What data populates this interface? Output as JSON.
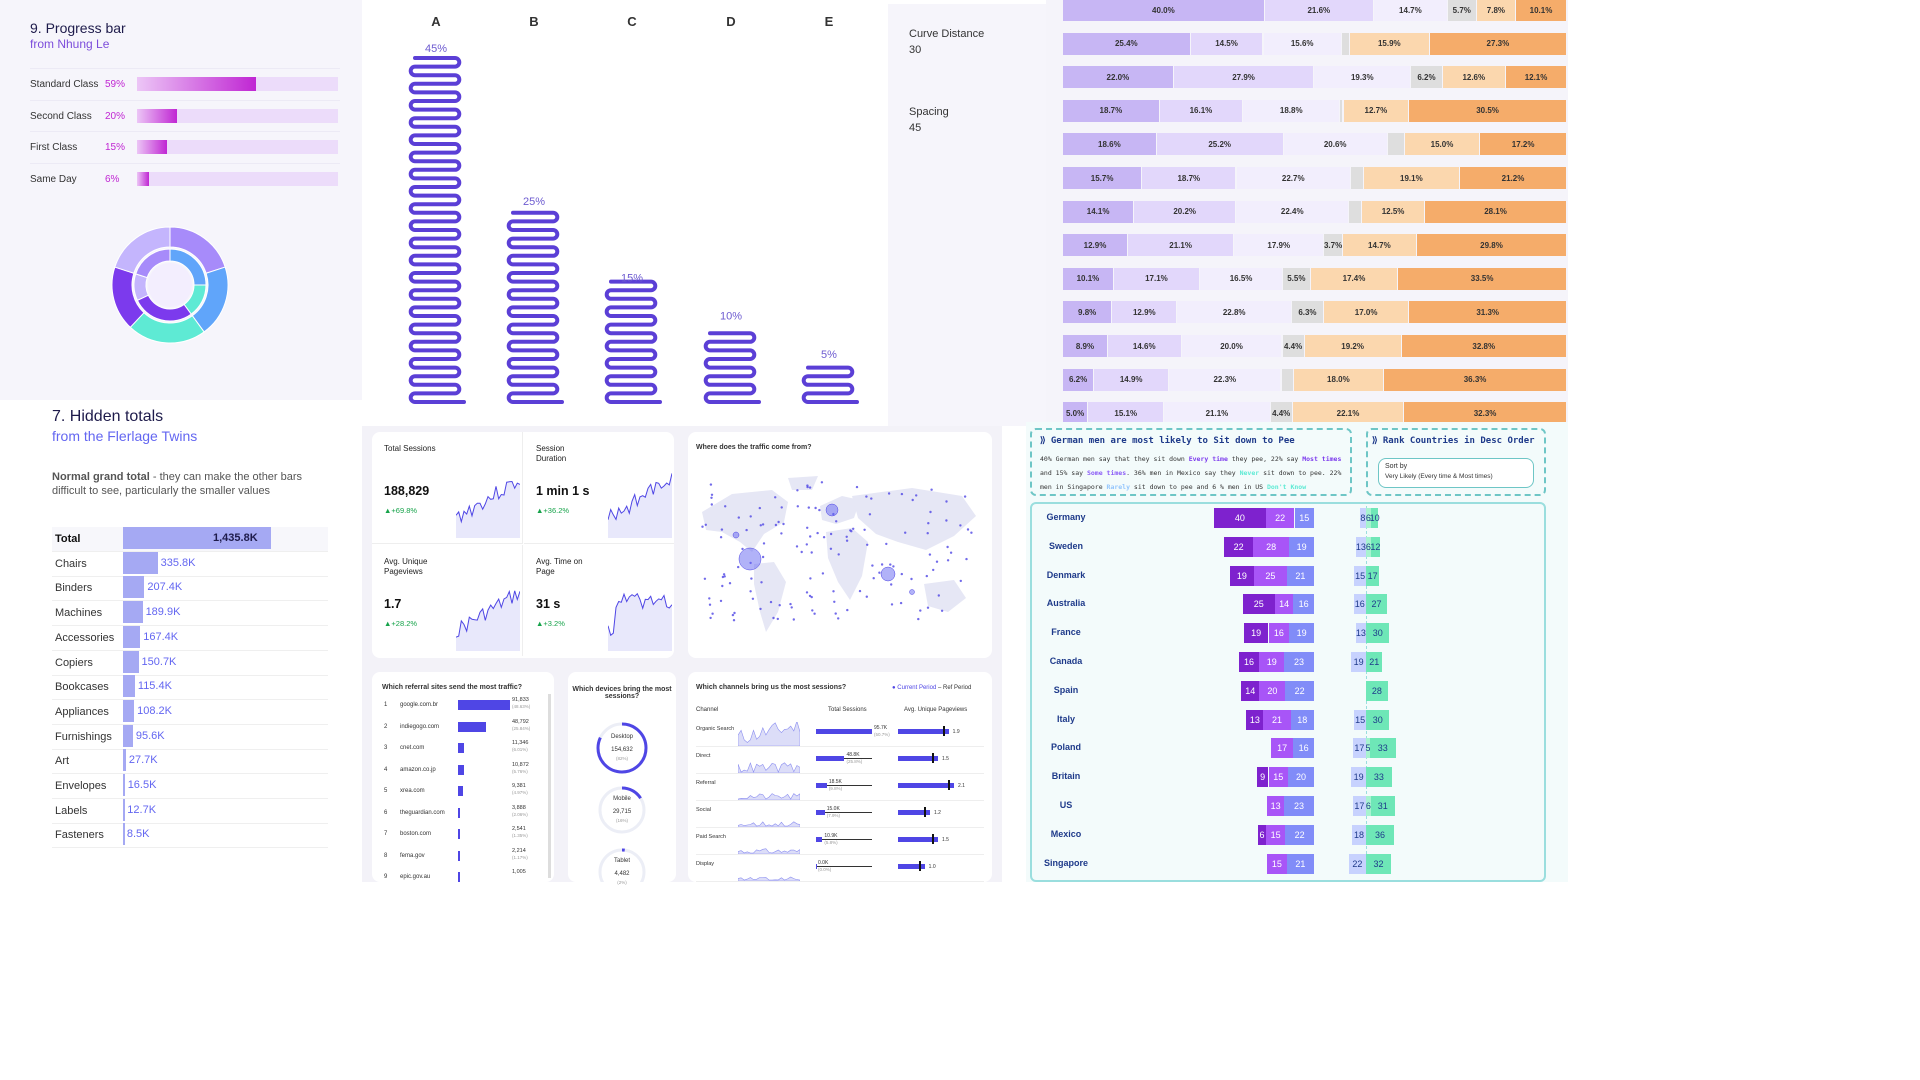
{
  "progress_panel": {
    "title": "9. Progress bar",
    "subtitle": "from Nhung Le",
    "rows": [
      {
        "label": "Standard Class",
        "pct_text": "59%",
        "value": 59
      },
      {
        "label": "Second Class",
        "pct_text": "20%",
        "value": 20
      },
      {
        "label": "First Class",
        "pct_text": "15%",
        "value": 15
      },
      {
        "label": "Same Day",
        "pct_text": "6%",
        "value": 6
      }
    ]
  },
  "hidden_totals": {
    "title": "7. Hidden totals",
    "subtitle": "from the Flerlage Twins",
    "desc_bold": "Normal grand total",
    "desc_rest": " - they can make the other bars difficult to see, particularly the smaller values"
  },
  "spring_chart": {
    "side": {
      "curve_label": "Curve Distance",
      "curve_value": "30",
      "spacing_label": "Spacing",
      "spacing_value": "45"
    }
  },
  "dashboard": {
    "kpis": [
      {
        "title": "Total Sessions",
        "value": "188,829",
        "delta": "▲+69.8%"
      },
      {
        "title": "Session Duration",
        "value": "1 min 1 s",
        "delta": "▲+36.2%"
      },
      {
        "title": "Avg. Unique Pageviews",
        "value": "1.7",
        "delta": "▲+28.2%"
      },
      {
        "title": "Avg. Time on Page",
        "value": "31 s",
        "delta": "▲+3.2%"
      }
    ],
    "map_title": "Where does the traffic come from?",
    "referral": {
      "title": "Which referral sites send the most traffic?",
      "rows": [
        {
          "rank": "1",
          "site": "google.com.br",
          "value": "91,833",
          "pct": "(48.63%)",
          "share": 48.63
        },
        {
          "rank": "2",
          "site": "indiegogo.com",
          "value": "48,792",
          "pct": "(25.84%)",
          "share": 25.84
        },
        {
          "rank": "3",
          "site": "cnet.com",
          "value": "11,346",
          "pct": "(6.01%)",
          "share": 6.01
        },
        {
          "rank": "4",
          "site": "amazon.co.jp",
          "value": "10,872",
          "pct": "(5.76%)",
          "share": 5.76
        },
        {
          "rank": "5",
          "site": "xrea.com",
          "value": "9,381",
          "pct": "(4.97%)",
          "share": 4.97
        },
        {
          "rank": "6",
          "site": "theguardian.com",
          "value": "3,888",
          "pct": "(2.06%)",
          "share": 2.06
        },
        {
          "rank": "7",
          "site": "boston.com",
          "value": "2,541",
          "pct": "(1.35%)",
          "share": 1.35
        },
        {
          "rank": "8",
          "site": "fema.gov",
          "value": "2,214",
          "pct": "(1.17%)",
          "share": 1.17
        },
        {
          "rank": "9",
          "site": "epic.gov.au",
          "value": "1,005",
          "pct": "",
          "share": 0.53
        }
      ]
    },
    "devices": {
      "title": "Which devices bring the most sessions?",
      "items": [
        {
          "name": "Desktop",
          "value": "154,632",
          "pct": "(82%)",
          "share": 82
        },
        {
          "name": "Mobile",
          "value": "29,715",
          "pct": "(16%)",
          "share": 16
        },
        {
          "name": "Tablet",
          "value": "4,482",
          "pct": "(2%)",
          "share": 2
        }
      ]
    },
    "channels": {
      "title": "Which channels bring us the most sessions?",
      "legend_current": "● Current Period",
      "legend_ref": "– Ref Period",
      "col_channel": "Channel",
      "col_sessions": "Total Sessions",
      "col_pageviews": "Avg. Unique Pageviews",
      "rows": [
        {
          "name": "Organic Search",
          "sessions": "95.7K",
          "pct": "(50.7%)",
          "share": 50.7,
          "pv": "1.9",
          "pv_value": 1.9
        },
        {
          "name": "Direct",
          "sessions": "48.8K",
          "pct": "(25.8%)",
          "share": 25.8,
          "pv": "1.5",
          "pv_value": 1.5
        },
        {
          "name": "Referral",
          "sessions": "18.5K",
          "pct": "(9.8%)",
          "share": 9.8,
          "pv": "2.1",
          "pv_value": 2.1
        },
        {
          "name": "Social",
          "sessions": "15.0K",
          "pct": "(7.9%)",
          "share": 7.9,
          "pv": "1.2",
          "pv_value": 1.2
        },
        {
          "name": "Paid Search",
          "sessions": "10.9K",
          "pct": "(5.8%)",
          "share": 5.8,
          "pv": "1.5",
          "pv_value": 1.5
        },
        {
          "name": "Display",
          "sessions": "0.0K",
          "pct": "(0.0%)",
          "share": 0.0,
          "pv": "1.0",
          "pv_value": 1.0
        }
      ]
    }
  },
  "pee_panel": {
    "title": "German men are most likely to Sit down to Pee",
    "line1": "40% German men say that they sit down ",
    "line1_hl": "Every time",
    "line1_rest": " they pee, 22% say ",
    "line1_hl2": "Most times",
    "line2a": "and 15% say ",
    "line2_hl": "Some times",
    "line2_rest": ". 36% men in Mexico say they ",
    "line2_hl2": "Never",
    "line2_end": " sit down to pee. 22%",
    "line3a": "men in Singapore ",
    "line3_hl": "Rarely",
    "line3_rest": " sit down to pee and 6 % men in US ",
    "line3_hl2": "Don't Know",
    "rank_title": "Rank Countries in Desc Order",
    "sort_by": "Sort by",
    "sort_value": "Very Likely (Every time & Most times)"
  },
  "chart_data": [
    {
      "type": "bar",
      "title": "9. Progress bar",
      "categories": [
        "Standard Class",
        "Second Class",
        "First Class",
        "Same Day"
      ],
      "values": [
        59,
        20,
        15,
        6
      ]
    },
    {
      "type": "pie",
      "series": [
        {
          "values": [
            20,
            20,
            22,
            18,
            20
          ]
        },
        {
          "values": [
            25,
            15,
            28,
            12,
            20
          ]
        }
      ],
      "colors": [
        "#a78bfa",
        "#60a5fa",
        "#5eead4",
        "#7c3aed",
        "#c4b5fd"
      ]
    },
    {
      "type": "bar",
      "title": "7. Hidden totals",
      "categories": [
        "Total",
        "Chairs",
        "Binders",
        "Machines",
        "Accessories",
        "Copiers",
        "Bookcases",
        "Appliances",
        "Furnishings",
        "Art",
        "Envelopes",
        "Labels",
        "Fasteners"
      ],
      "values": [
        1435.8,
        335.8,
        207.4,
        189.9,
        167.4,
        150.7,
        115.4,
        108.2,
        95.6,
        27.7,
        16.5,
        12.7,
        8.5
      ],
      "labels": [
        "1,435.8K",
        "335.8K",
        "207.4K",
        "189.9K",
        "167.4K",
        "150.7K",
        "115.4K",
        "108.2K",
        "95.6K",
        "27.7K",
        "16.5K",
        "12.7K",
        "8.5K"
      ]
    },
    {
      "type": "bar",
      "categories": [
        "A",
        "B",
        "C",
        "D",
        "E"
      ],
      "values": [
        45,
        25,
        15,
        10,
        5
      ],
      "labels": [
        "45%",
        "25%",
        "15%",
        "10%",
        "5%"
      ],
      "color": "#5b3fd6"
    },
    {
      "type": "bar",
      "stacked": true,
      "orientation": "horizontal",
      "colors": [
        "#c7b6f4",
        "#e2d7fb",
        "#f2eefd",
        "#dedede",
        "#fbd7ae",
        "#f5ac6a"
      ],
      "rows": [
        [
          40.0,
          21.6,
          14.7,
          5.7,
          7.8,
          10.1
        ],
        [
          25.4,
          14.5,
          15.6,
          1.6,
          15.9,
          27.3
        ],
        [
          22.0,
          27.9,
          19.3,
          6.2,
          12.6,
          12.1
        ],
        [
          18.7,
          16.1,
          18.8,
          0.6,
          12.7,
          30.5
        ],
        [
          18.6,
          25.2,
          20.6,
          3.4,
          15.0,
          17.2
        ],
        [
          15.7,
          18.7,
          22.7,
          2.5,
          19.1,
          21.2
        ],
        [
          14.1,
          20.2,
          22.4,
          2.5,
          12.5,
          28.1
        ],
        [
          12.9,
          21.1,
          17.9,
          3.7,
          14.7,
          29.8
        ],
        [
          10.1,
          17.1,
          16.5,
          5.5,
          17.4,
          33.5
        ],
        [
          9.8,
          12.9,
          22.8,
          6.3,
          17.0,
          31.3
        ],
        [
          8.9,
          14.6,
          20.0,
          4.4,
          19.2,
          32.8
        ],
        [
          6.2,
          14.9,
          22.3,
          2.4,
          18.0,
          36.3
        ],
        [
          5.0,
          15.1,
          21.1,
          4.4,
          22.1,
          32.3
        ]
      ],
      "labels": [
        [
          "40.0%",
          "21.6%",
          "14.7%",
          "5.7%",
          "7.8%",
          "10.1%"
        ],
        [
          "25.4%",
          "14.5%",
          "15.6%",
          "",
          "15.9%",
          "27.3%"
        ],
        [
          "22.0%",
          "27.9%",
          "19.3%",
          "6.2%",
          "12.6%",
          "12.1%"
        ],
        [
          "18.7%",
          "16.1%",
          "18.8%",
          "",
          "12.7%",
          "30.5%"
        ],
        [
          "18.6%",
          "25.2%",
          "20.6%",
          "",
          "15.0%",
          "17.2%"
        ],
        [
          "15.7%",
          "18.7%",
          "22.7%",
          "",
          "19.1%",
          "21.2%"
        ],
        [
          "14.1%",
          "20.2%",
          "22.4%",
          "",
          "12.5%",
          "28.1%"
        ],
        [
          "12.9%",
          "21.1%",
          "17.9%",
          "3.7%",
          "14.7%",
          "29.8%"
        ],
        [
          "10.1%",
          "17.1%",
          "16.5%",
          "5.5%",
          "17.4%",
          "33.5%"
        ],
        [
          "9.8%",
          "12.9%",
          "22.8%",
          "6.3%",
          "17.0%",
          "31.3%"
        ],
        [
          "8.9%",
          "14.6%",
          "20.0%",
          "4.4%",
          "19.2%",
          "32.8%"
        ],
        [
          "6.2%",
          "14.9%",
          "22.3%",
          "",
          "18.0%",
          "36.3%"
        ],
        [
          "5.0%",
          "15.1%",
          "21.1%",
          "4.4%",
          "22.1%",
          "32.3%"
        ]
      ]
    },
    {
      "type": "bar",
      "title": "German men are most likely to Sit down to Pee",
      "stacked": true,
      "orientation": "horizontal",
      "categories": [
        "Germany",
        "Sweden",
        "Denmark",
        "Australia",
        "France",
        "Canada",
        "Spain",
        "Italy",
        "Poland",
        "Britain",
        "US",
        "Mexico",
        "Singapore"
      ],
      "series": [
        {
          "name": "Every time",
          "values": [
            40,
            22,
            19,
            25,
            19,
            16,
            14,
            13,
            0,
            9,
            0,
            6,
            0
          ]
        },
        {
          "name": "Most times",
          "values": [
            22,
            28,
            25,
            14,
            16,
            19,
            20,
            21,
            17,
            15,
            13,
            15,
            15
          ]
        },
        {
          "name": "Some times",
          "values": [
            15,
            19,
            21,
            16,
            19,
            23,
            22,
            18,
            16,
            20,
            23,
            22,
            21
          ]
        },
        {
          "name": "Rarely",
          "values": [
            8,
            13,
            15,
            16,
            13,
            19,
            0,
            15,
            17,
            19,
            17,
            18,
            22
          ]
        },
        {
          "name": "Don't Know",
          "values": [
            6,
            6,
            0,
            0,
            0,
            0,
            0,
            0,
            5,
            0,
            6,
            0,
            0
          ]
        },
        {
          "name": "Never",
          "values": [
            10,
            12,
            17,
            27,
            30,
            21,
            28,
            30,
            33,
            33,
            31,
            36,
            32
          ]
        }
      ]
    }
  ]
}
